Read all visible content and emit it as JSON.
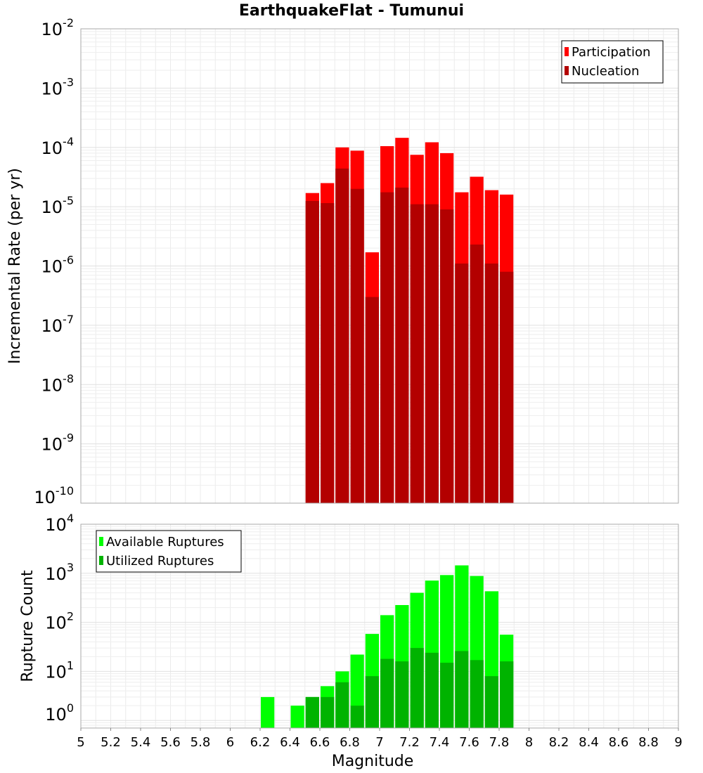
{
  "title": "EarthquakeFlat - Tumunui",
  "chart_data": [
    {
      "type": "bar",
      "ylabel": "Incremental Rate (per yr)",
      "yscale": "log",
      "ylim": [
        1e-10,
        0.01
      ],
      "y_tick_exponents": [
        -2,
        -3,
        -4,
        -5,
        -6,
        -7,
        -8,
        -9,
        -10
      ],
      "xlim": [
        5,
        9
      ],
      "bin_width": 0.1,
      "grid": true,
      "legend_position": "top-right",
      "series": [
        {
          "name": "Participation",
          "color": "#ff0000",
          "x": [
            6.55,
            6.65,
            6.75,
            6.85,
            6.95,
            7.05,
            7.15,
            7.25,
            7.35,
            7.45,
            7.55,
            7.65,
            7.75,
            7.85
          ],
          "values": [
            1.7e-05,
            2.5e-05,
            0.0001,
            8.8e-05,
            1.7e-06,
            0.000105,
            0.000145,
            7.5e-05,
            0.000122,
            8e-05,
            1.75e-05,
            3.2e-05,
            1.9e-05,
            1.6e-05
          ]
        },
        {
          "name": "Nucleation",
          "color": "#b30000",
          "x": [
            6.55,
            6.65,
            6.75,
            6.85,
            6.95,
            7.05,
            7.15,
            7.25,
            7.35,
            7.45,
            7.55,
            7.65,
            7.75,
            7.85
          ],
          "values": [
            1.25e-05,
            1.15e-05,
            4.4e-05,
            2e-05,
            3e-07,
            1.75e-05,
            2.1e-05,
            1.1e-05,
            1.1e-05,
            9e-06,
            1.1e-06,
            2.3e-06,
            1.1e-06,
            8e-07
          ]
        }
      ]
    },
    {
      "type": "bar",
      "ylabel": "Rupture Count",
      "xlabel": "Magnitude",
      "yscale": "log",
      "ylim": [
        0.7,
        10000
      ],
      "y_tick_exponents": [
        4,
        3,
        2,
        1,
        0
      ],
      "xlim": [
        5,
        9
      ],
      "x_ticks": [
        "5",
        "5.2",
        "5.4",
        "5.6",
        "5.8",
        "6",
        "6.2",
        "6.4",
        "6.6",
        "6.8",
        "7",
        "7.2",
        "7.4",
        "7.6",
        "7.8",
        "8",
        "8.2",
        "8.4",
        "8.6",
        "8.8",
        "9"
      ],
      "bin_width": 0.1,
      "grid": true,
      "legend_position": "top-left",
      "series": [
        {
          "name": "Available Ruptures",
          "color": "#00ff00",
          "x": [
            6.25,
            6.45,
            6.55,
            6.65,
            6.75,
            6.85,
            6.95,
            7.05,
            7.15,
            7.25,
            7.35,
            7.45,
            7.55,
            7.65,
            7.75,
            7.85
          ],
          "values": [
            3,
            2,
            3,
            5,
            10,
            22,
            58,
            140,
            225,
            400,
            710,
            920,
            1450,
            880,
            430,
            56
          ]
        },
        {
          "name": "Utilized Ruptures",
          "color": "#00b300",
          "x": [
            6.55,
            6.65,
            6.75,
            6.85,
            6.95,
            7.05,
            7.15,
            7.25,
            7.35,
            7.45,
            7.55,
            7.65,
            7.75,
            7.85
          ],
          "values": [
            3,
            3,
            6,
            2,
            8,
            18,
            16,
            30,
            24,
            15,
            26,
            17,
            8,
            16
          ]
        }
      ]
    }
  ]
}
